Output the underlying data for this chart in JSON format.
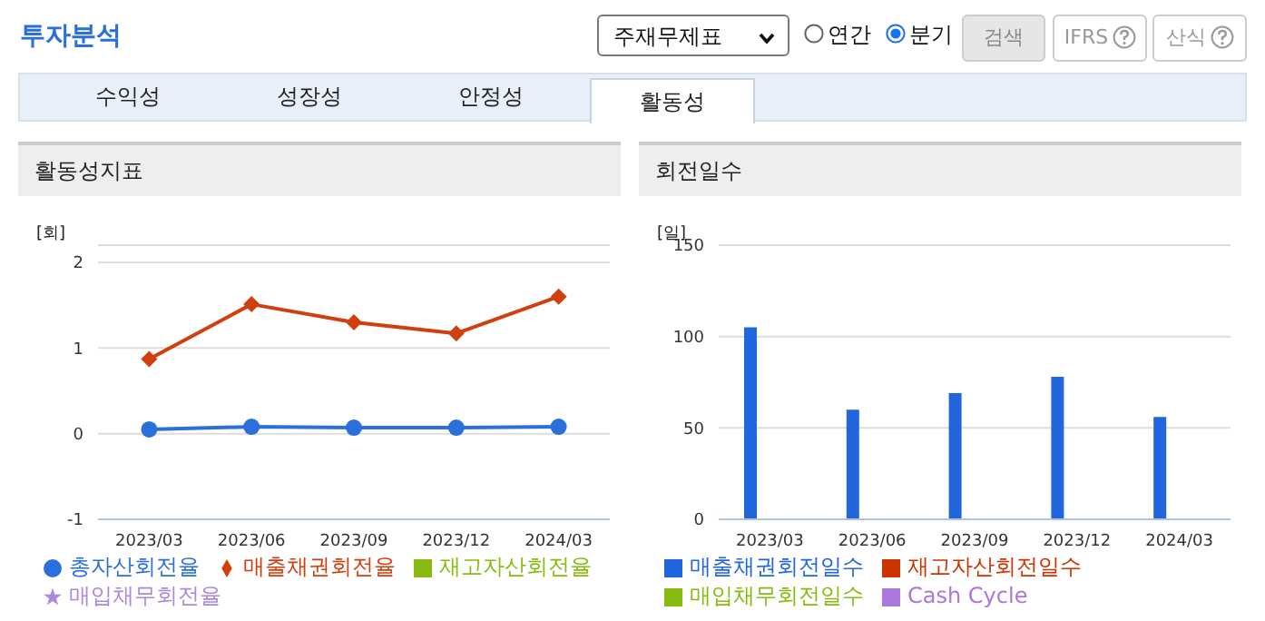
{
  "chart_data": [
    {
      "type": "line",
      "title": "활동성지표",
      "ylabel": "[회]",
      "categories": [
        "2023/03",
        "2023/06",
        "2023/09",
        "2023/12",
        "2024/03"
      ],
      "series": [
        {
          "name": "총자산회전율",
          "color": "#2a6fdb",
          "marker": "circle",
          "values": [
            0.05,
            0.08,
            0.07,
            0.07,
            0.08
          ]
        },
        {
          "name": "매출채권회전율",
          "color": "#d0400f",
          "marker": "diamond",
          "values": [
            0.87,
            1.51,
            1.3,
            1.17,
            1.6
          ]
        },
        {
          "name": "재고자산회전율",
          "color": "#88bb11",
          "marker": "square",
          "values": [
            null,
            null,
            null,
            null,
            null
          ]
        },
        {
          "name": "매입채무회전율",
          "color": "#aa88dd",
          "marker": "star",
          "values": [
            null,
            null,
            null,
            null,
            null
          ]
        }
      ],
      "ylim": [
        -1,
        2.2
      ],
      "yticks": [
        -1,
        0,
        1,
        2
      ],
      "grid": "y",
      "legend": "bottom",
      "annotations": [
        "투자분석",
        "주재무제표",
        "연간",
        "분기",
        "검색",
        "IFRS",
        "산식",
        "수익성",
        "성장성",
        "안정성",
        "활동성"
      ]
    },
    {
      "type": "bar",
      "title": "회전일수",
      "ylabel": "[일]",
      "categories": [
        "2023/03",
        "2023/06",
        "2023/09",
        "2023/12",
        "2024/03"
      ],
      "series": [
        {
          "name": "매출채권회전일수",
          "color": "#2266dd",
          "values": [
            105,
            60,
            69,
            78,
            56
          ]
        },
        {
          "name": "재고자산회전일수",
          "color": "#cc3300",
          "values": [
            null,
            null,
            null,
            null,
            null
          ]
        },
        {
          "name": "매입채무회전일수",
          "color": "#88bb11",
          "values": [
            null,
            null,
            null,
            null,
            null
          ]
        },
        {
          "name": "Cash Cycle",
          "color": "#aa77dd",
          "values": [
            null,
            null,
            null,
            null,
            null
          ]
        }
      ],
      "ylim": [
        0,
        150
      ],
      "yticks": [
        0,
        50,
        100,
        150
      ],
      "grid": "y",
      "legend": "bottom"
    }
  ]
}
